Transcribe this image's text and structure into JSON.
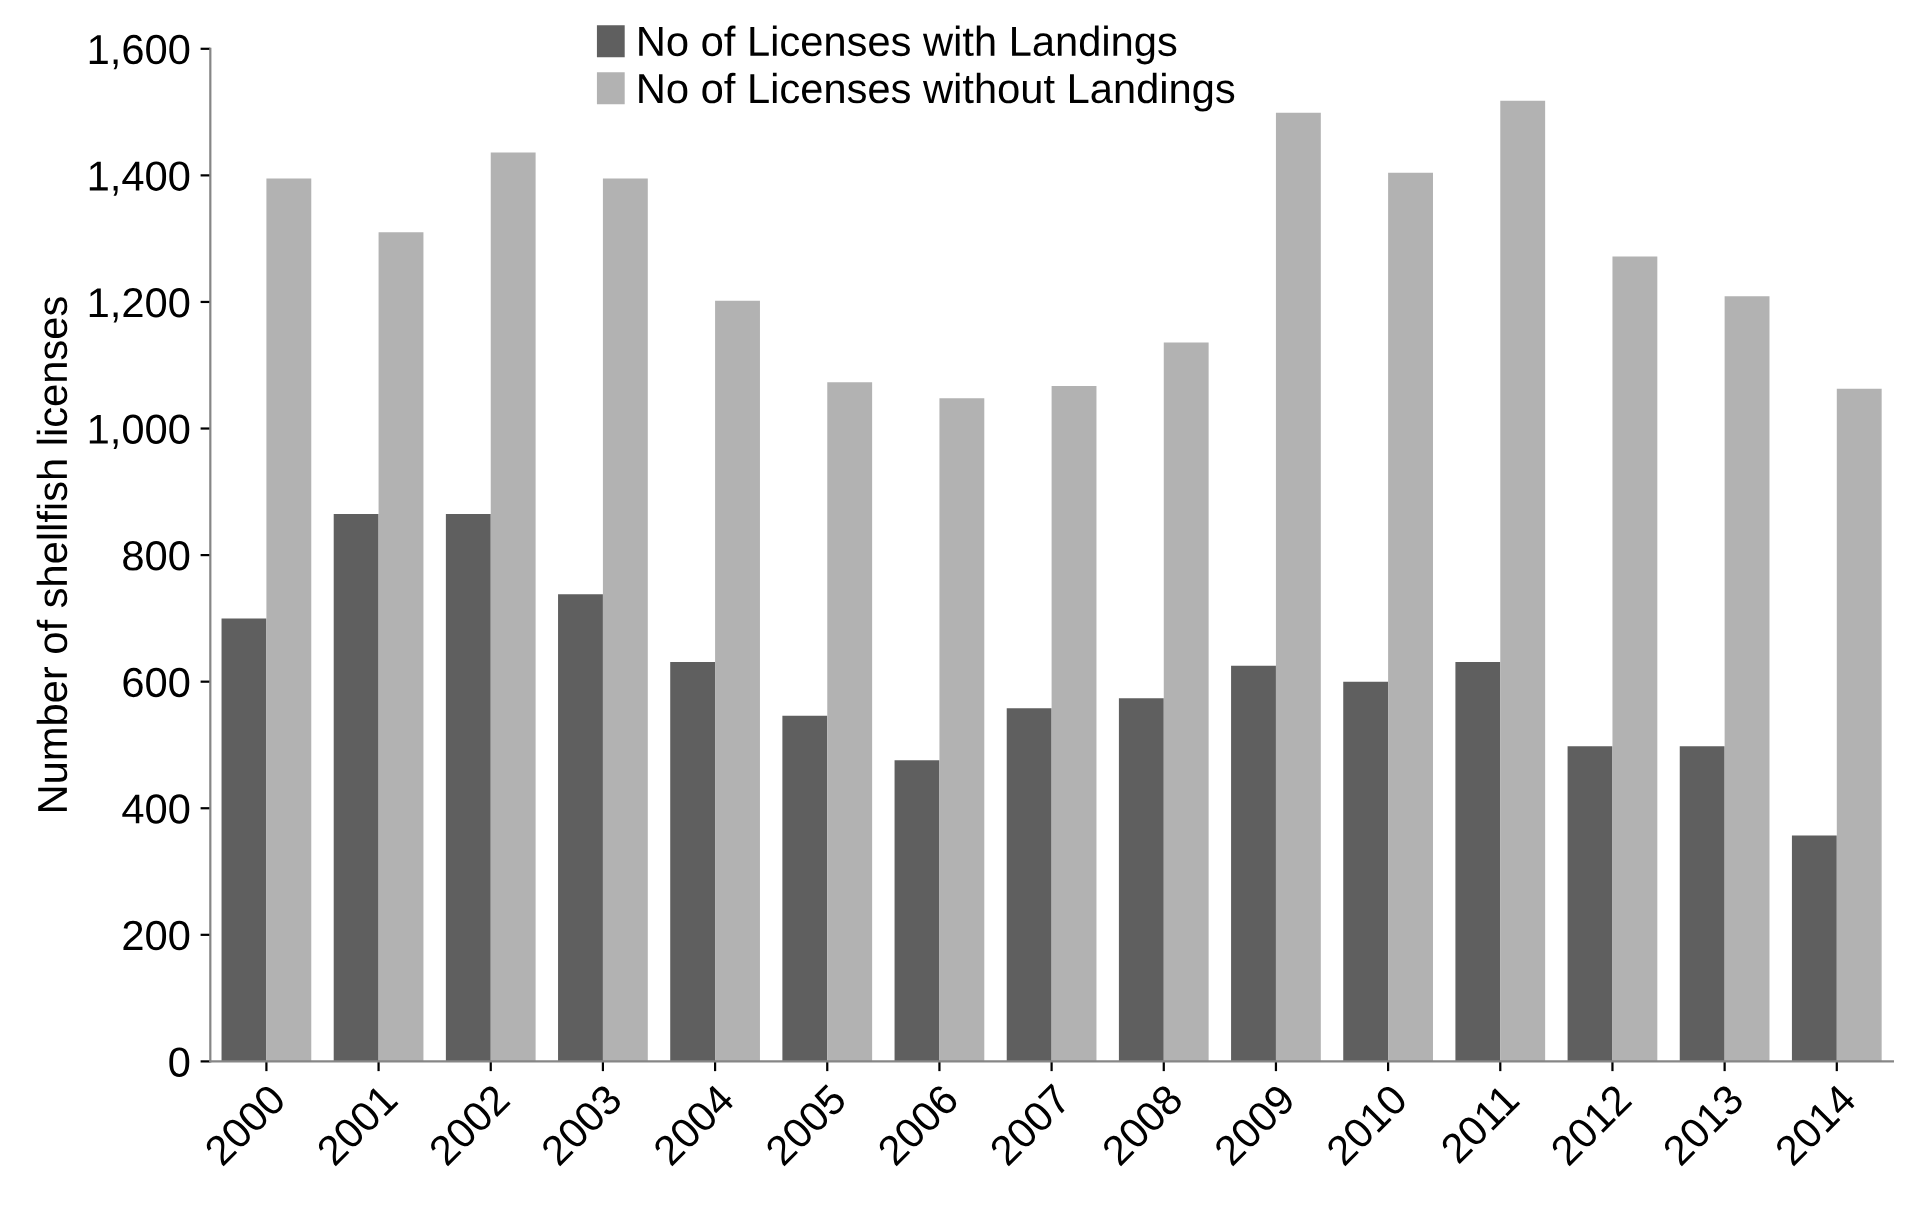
{
  "chart_data": {
    "type": "bar",
    "ylabel": "Number of shellfish licenses",
    "categories": [
      "2000",
      "2001",
      "2002",
      "2003",
      "2004",
      "2005",
      "2006",
      "2007",
      "2008",
      "2009",
      "2010",
      "2011",
      "2012",
      "2013",
      "2014"
    ],
    "series": [
      {
        "name": "No of Licenses with Landings",
        "color": "#5f5f5f",
        "values": [
          700,
          865,
          865,
          738,
          631,
          546,
          476,
          558,
          574,
          625,
          600,
          631,
          498,
          498,
          357
        ]
      },
      {
        "name": "No of Licenses without Landings",
        "color": "#b2b2b2",
        "values": [
          1395,
          1310,
          1436,
          1395,
          1202,
          1073,
          1048,
          1067,
          1136,
          1499,
          1404,
          1518,
          1272,
          1209,
          1063
        ]
      }
    ],
    "ylim": [
      0,
      1600
    ],
    "yticks": [
      {
        "value": 0,
        "label": "0"
      },
      {
        "value": 200,
        "label": "200"
      },
      {
        "value": 400,
        "label": "400"
      },
      {
        "value": 600,
        "label": "600"
      },
      {
        "value": 800,
        "label": "800"
      },
      {
        "value": 1000,
        "label": "1,000"
      },
      {
        "value": 1200,
        "label": "1,200"
      },
      {
        "value": 1400,
        "label": "1,400"
      },
      {
        "value": 1600,
        "label": "1,600"
      }
    ],
    "grid": false,
    "legend": "top"
  }
}
